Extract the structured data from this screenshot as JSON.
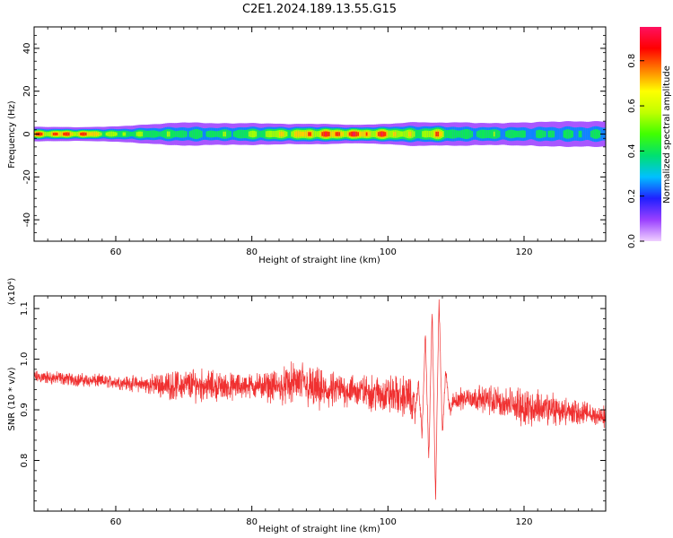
{
  "title": "C2E1.2024.189.13.55.G15",
  "chart_data": [
    {
      "type": "heatmap",
      "xlabel": "Height of straight line (km)",
      "ylabel": "Frequency (Hz)",
      "xlim": [
        48,
        132
      ],
      "ylim": [
        -50,
        50
      ],
      "xticks": [
        60,
        80,
        100,
        120
      ],
      "yticks": [
        -40,
        -20,
        0,
        20,
        40
      ],
      "colorbar": {
        "label": "Normalized spectral amplitude",
        "range": [
          0,
          0.95
        ],
        "ticks": [
          0.0,
          0.2,
          0.4,
          0.6,
          0.8
        ],
        "colormap": [
          "#f0d0ff",
          "#9a40ff",
          "#2020ff",
          "#00c0ff",
          "#00e070",
          "#40ff00",
          "#c0ff00",
          "#ffff00",
          "#ff8000",
          "#ff0000",
          "#ff1060"
        ]
      },
      "band": {
        "center_freq": 0,
        "profile": [
          {
            "x": 48,
            "amp": 0.85,
            "halfwidth": 3.2
          },
          {
            "x": 55,
            "amp": 0.9,
            "halfwidth": 3.0
          },
          {
            "x": 60,
            "amp": 0.6,
            "halfwidth": 3.5
          },
          {
            "x": 65,
            "amp": 0.55,
            "halfwidth": 4.5
          },
          {
            "x": 70,
            "amp": 0.5,
            "halfwidth": 5.5
          },
          {
            "x": 75,
            "amp": 0.5,
            "halfwidth": 5.0
          },
          {
            "x": 80,
            "amp": 0.6,
            "halfwidth": 5.0
          },
          {
            "x": 85,
            "amp": 0.75,
            "halfwidth": 4.5
          },
          {
            "x": 90,
            "amp": 0.88,
            "halfwidth": 4.5
          },
          {
            "x": 95,
            "amp": 0.92,
            "halfwidth": 4.0
          },
          {
            "x": 100,
            "amp": 0.85,
            "halfwidth": 4.5
          },
          {
            "x": 104,
            "amp": 0.6,
            "halfwidth": 5.5
          },
          {
            "x": 107,
            "amp": 0.8,
            "halfwidth": 5.0
          },
          {
            "x": 110,
            "amp": 0.5,
            "halfwidth": 5.5
          },
          {
            "x": 115,
            "amp": 0.55,
            "halfwidth": 5.0
          },
          {
            "x": 120,
            "amp": 0.45,
            "halfwidth": 5.5
          },
          {
            "x": 125,
            "amp": 0.45,
            "halfwidth": 6.0
          },
          {
            "x": 132,
            "amp": 0.45,
            "halfwidth": 6.0
          }
        ]
      }
    },
    {
      "type": "line",
      "xlabel": "Height of straight line (km)",
      "ylabel": "SNR (10 * v/v)",
      "ylabel_multiplier": "(x10⁴)",
      "xlim": [
        48,
        132
      ],
      "ylim": [
        0.7,
        1.125
      ],
      "xticks": [
        60,
        80,
        100,
        120
      ],
      "yticks": [
        0.8,
        0.9,
        1.0,
        1.1
      ],
      "series": [
        {
          "color": "#f03030",
          "x": [
            48,
            52,
            56,
            60,
            64,
            68,
            72,
            76,
            80,
            84,
            87,
            89,
            91,
            93,
            95,
            97,
            99,
            101,
            102,
            103,
            104,
            104.5,
            105,
            105.5,
            106,
            106.5,
            107,
            107.5,
            108,
            108.5,
            109,
            110,
            112,
            115,
            118,
            121,
            124,
            127,
            130,
            132
          ],
          "y": [
            0.965,
            0.962,
            0.958,
            0.955,
            0.95,
            0.948,
            0.95,
            0.945,
            0.948,
            0.945,
            0.955,
            0.94,
            0.935,
            0.94,
            0.938,
            0.935,
            0.93,
            0.93,
            0.925,
            0.93,
            0.9,
            0.95,
            0.85,
            1.05,
            0.8,
            1.1,
            0.72,
            1.12,
            0.85,
            0.98,
            0.9,
            0.92,
            0.925,
            0.92,
            0.91,
            0.905,
            0.9,
            0.895,
            0.89,
            0.885
          ],
          "noise": [
            0.012,
            0.012,
            0.012,
            0.012,
            0.015,
            0.025,
            0.03,
            0.025,
            0.022,
            0.03,
            0.04,
            0.04,
            0.035,
            0.03,
            0.03,
            0.03,
            0.035,
            0.035,
            0.035,
            0.04,
            0.03,
            0.02,
            0.02,
            0.02,
            0.02,
            0.02,
            0.02,
            0.02,
            0.02,
            0.02,
            0.02,
            0.02,
            0.02,
            0.025,
            0.03,
            0.035,
            0.03,
            0.025,
            0.02,
            0.02
          ]
        }
      ]
    }
  ]
}
